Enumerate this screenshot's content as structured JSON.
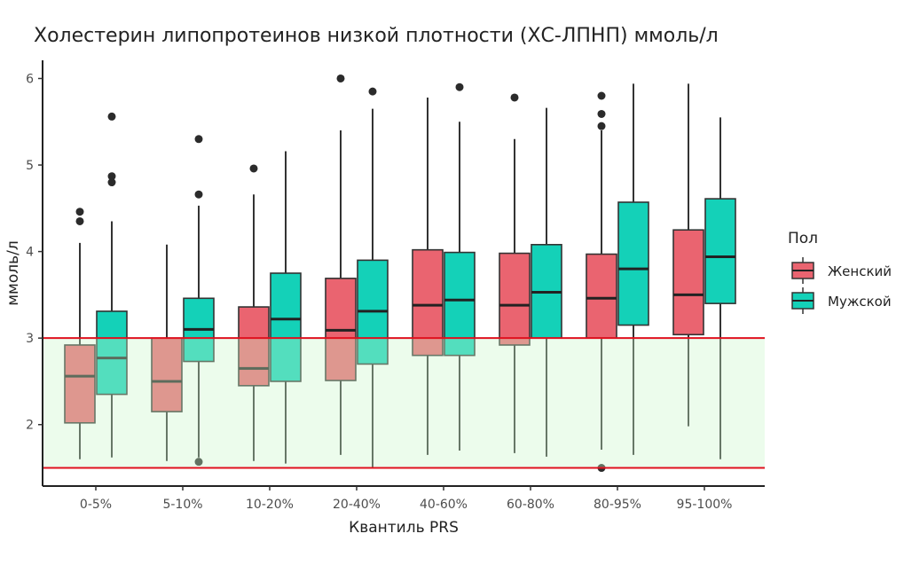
{
  "chart_data": {
    "type": "boxplot",
    "title": "Холестерин липопротеинов низкой плотности (ХС-ЛПНП) ммоль/л",
    "xlabel": "Квантиль PRS",
    "ylabel": "ммоль/л",
    "ylim": [
      1.29,
      6.21
    ],
    "yticks": [
      2,
      3,
      4,
      5,
      6
    ],
    "categories": [
      "0-5%",
      "5-10%",
      "10-20%",
      "20-40%",
      "40-60%",
      "60-80%",
      "80-95%",
      "95-100%"
    ],
    "legend": {
      "title": "Пол",
      "position": "right"
    },
    "reference_lines": [
      3.0,
      1.5
    ],
    "reference_band": [
      1.5,
      3.0
    ],
    "colors": {
      "female": "#EA6470",
      "male": "#14D1B8",
      "band": "#E6FCE6",
      "line": "#E0101E"
    },
    "series": [
      {
        "name": "Женский",
        "color": "#EA6470",
        "boxes": [
          {
            "min": 1.6,
            "q1": 2.02,
            "median": 2.56,
            "q3": 2.92,
            "max": 4.1,
            "outliers": [
              4.35,
              4.46
            ]
          },
          {
            "min": 1.58,
            "q1": 2.15,
            "median": 2.5,
            "q3": 3.0,
            "max": 4.08,
            "outliers": []
          },
          {
            "min": 1.58,
            "q1": 2.45,
            "median": 2.65,
            "q3": 3.36,
            "max": 4.66,
            "outliers": [
              4.96
            ]
          },
          {
            "min": 1.65,
            "q1": 2.51,
            "median": 3.09,
            "q3": 3.69,
            "max": 5.4,
            "outliers": [
              6.0
            ]
          },
          {
            "min": 1.65,
            "q1": 2.8,
            "median": 3.38,
            "q3": 4.02,
            "max": 5.78,
            "outliers": []
          },
          {
            "min": 1.67,
            "q1": 2.92,
            "median": 3.38,
            "q3": 3.98,
            "max": 5.3,
            "outliers": [
              5.78
            ]
          },
          {
            "min": 1.71,
            "q1": 3.0,
            "median": 3.46,
            "q3": 3.97,
            "max": 5.4,
            "outliers": [
              1.5,
              5.45,
              5.59,
              5.8
            ]
          },
          {
            "min": 1.98,
            "q1": 3.04,
            "median": 3.5,
            "q3": 4.25,
            "max": 5.94,
            "outliers": []
          }
        ]
      },
      {
        "name": "Мужской",
        "color": "#14D1B8",
        "boxes": [
          {
            "min": 1.62,
            "q1": 2.35,
            "median": 2.77,
            "q3": 3.31,
            "max": 4.35,
            "outliers": [
              4.8,
              4.87,
              5.56
            ]
          },
          {
            "min": 1.62,
            "q1": 2.73,
            "median": 3.1,
            "q3": 3.46,
            "max": 4.53,
            "outliers": [
              1.57,
              4.66,
              5.3
            ]
          },
          {
            "min": 1.55,
            "q1": 2.5,
            "median": 3.22,
            "q3": 3.75,
            "max": 5.16,
            "outliers": []
          },
          {
            "min": 1.5,
            "q1": 2.7,
            "median": 3.31,
            "q3": 3.9,
            "max": 5.65,
            "outliers": [
              5.85
            ]
          },
          {
            "min": 1.7,
            "q1": 2.8,
            "median": 3.44,
            "q3": 3.99,
            "max": 5.5,
            "outliers": [
              5.9
            ]
          },
          {
            "min": 1.63,
            "q1": 3.0,
            "median": 3.53,
            "q3": 4.08,
            "max": 5.66,
            "outliers": []
          },
          {
            "min": 1.65,
            "q1": 3.15,
            "median": 3.8,
            "q3": 4.57,
            "max": 5.94,
            "outliers": []
          },
          {
            "min": 1.6,
            "q1": 3.4,
            "median": 3.94,
            "q3": 4.61,
            "max": 5.55,
            "outliers": []
          }
        ]
      }
    ]
  }
}
